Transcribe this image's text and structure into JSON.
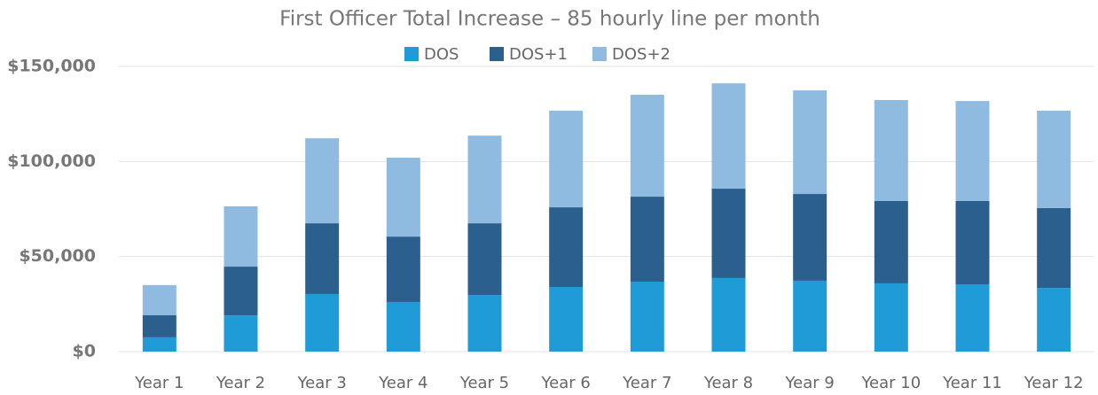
{
  "chart_data": {
    "type": "stacked_bar",
    "title": "First Officer Total Increase – 85 hourly line per month",
    "categories": [
      "Year 1",
      "Year 2",
      "Year 3",
      "Year 4",
      "Year 5",
      "Year 6",
      "Year 7",
      "Year 8",
      "Year 9",
      "Year 10",
      "Year 11",
      "Year 12"
    ],
    "series": [
      {
        "name": "DOS",
        "color": "#1f9bd7",
        "values": [
          7500,
          19000,
          30300,
          26100,
          29800,
          34000,
          36800,
          38700,
          37300,
          35900,
          35400,
          33500
        ]
      },
      {
        "name": "DOS+1",
        "color": "#2b5f8e",
        "values": [
          11600,
          25700,
          37200,
          34400,
          37700,
          41900,
          44700,
          47000,
          45600,
          43300,
          43800,
          42000
        ]
      },
      {
        "name": "DOS+2",
        "color": "#8fbbe0",
        "values": [
          15900,
          31700,
          44700,
          41500,
          46100,
          50800,
          53600,
          55400,
          54500,
          53100,
          52600,
          51200
        ]
      }
    ],
    "ylim": [
      0,
      150000
    ],
    "yticks": [
      {
        "value": 0,
        "label": "$0"
      },
      {
        "value": 50000,
        "label": "$50,000"
      },
      {
        "value": 100000,
        "label": "$100,000"
      },
      {
        "value": 150000,
        "label": "$150,000"
      }
    ],
    "grid": true,
    "legend": "top"
  }
}
